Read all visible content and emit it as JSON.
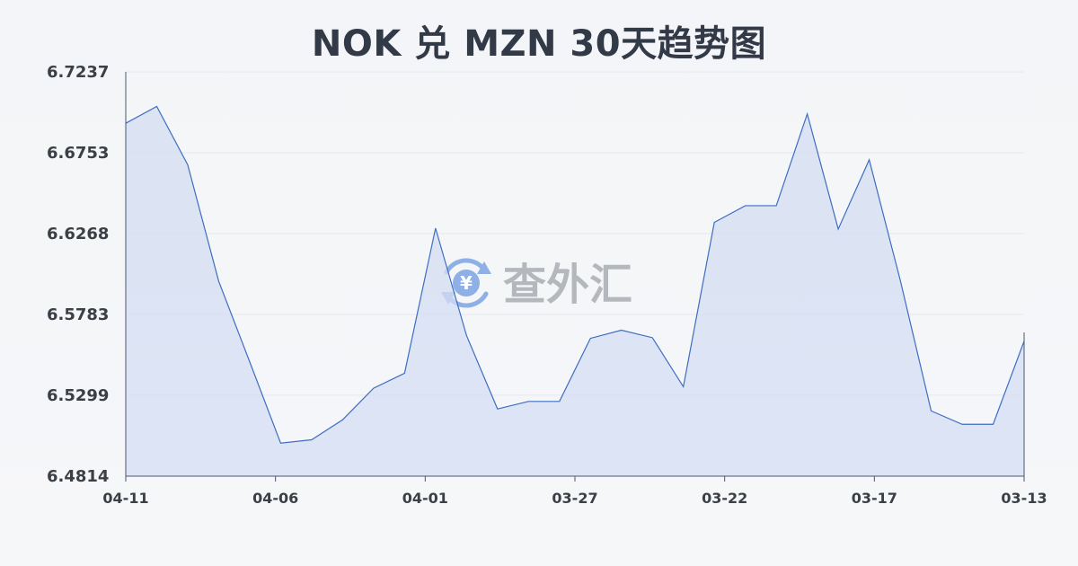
{
  "title": "NOK 兑 MZN 30天趋势图",
  "watermark": {
    "text": "查外汇",
    "icon": "yen-exchange-icon"
  },
  "colors": {
    "line": "#3e6dc2",
    "fill": "#d4def3",
    "grid": "#e6e8ec",
    "axis": "#4a5670"
  },
  "chart_data": {
    "type": "area",
    "title": "NOK 兑 MZN 30天趋势图",
    "xlabel": "",
    "ylabel": "",
    "ylim": [
      6.4814,
      6.7237
    ],
    "yticks": [
      "6.7237",
      "6.6753",
      "6.6268",
      "6.5783",
      "6.5299",
      "6.4814"
    ],
    "xticks": [
      "04-11",
      "04-06",
      "04-01",
      "03-27",
      "03-22",
      "03-17",
      "03-13"
    ],
    "grid": true,
    "legend": "none",
    "series": [
      {
        "values": [
          6.6929,
          6.703,
          6.668,
          6.5982,
          6.55,
          6.5012,
          6.5032,
          6.5152,
          6.5341,
          6.5431,
          6.63,
          6.5657,
          6.5217,
          6.5262,
          6.5262,
          6.564,
          6.5689,
          6.5644,
          6.535,
          6.6335,
          6.6435,
          6.6435,
          6.6985,
          6.6295,
          6.671,
          6.599,
          6.5205,
          6.5125,
          6.5125,
          6.5623
        ]
      }
    ]
  }
}
